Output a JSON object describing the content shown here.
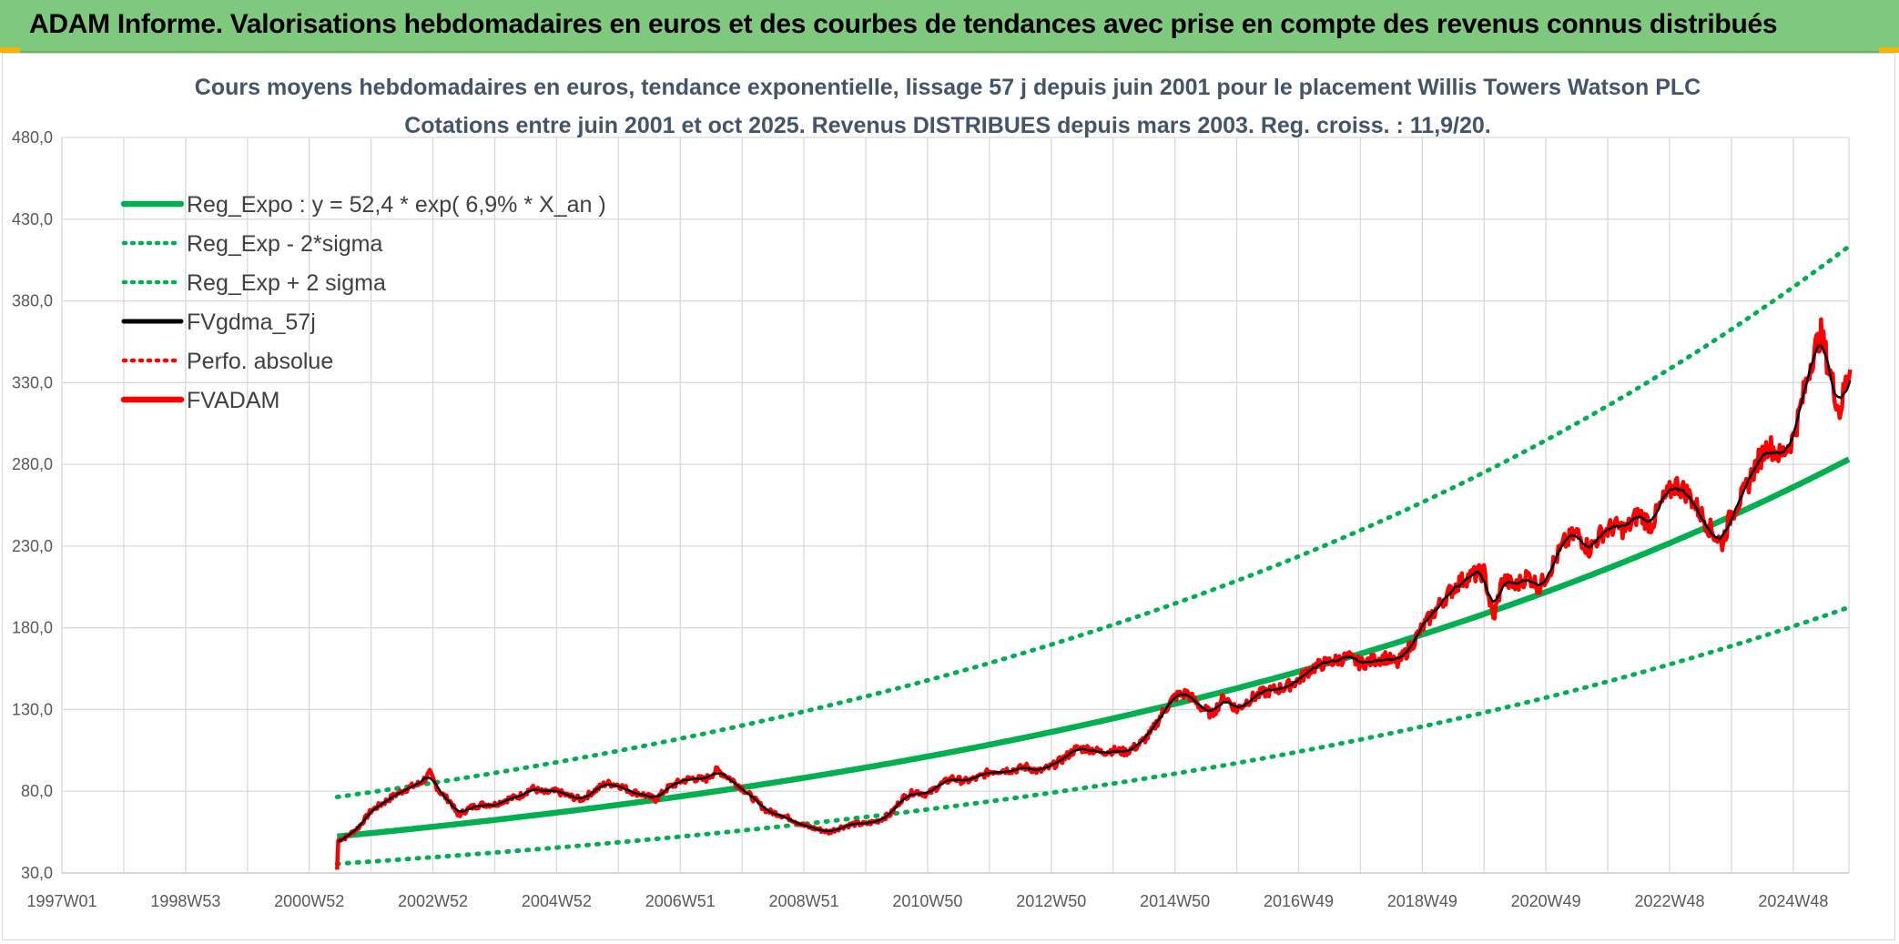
{
  "banner": {
    "title": "ADAM Informe. Valorisations hebdomadaires en euros et des courbes de tendances avec prise en compte des revenus connus distribués"
  },
  "colors": {
    "banner": "#7fc97f",
    "regression": "#00b050",
    "smoothed": "#000000",
    "price": "#ff0000"
  },
  "chart_data": {
    "type": "line",
    "title": "Cours moyens hebdomadaires en euros, tendance exponentielle, lissage 57 j depuis juin 2001 pour le placement Willis Towers Watson PLC",
    "subtitle": "Cotations entre juin 2001 et oct 2025. Revenus DISTRIBUES depuis mars 2003. Reg. croiss. : 11,9/20.",
    "xlabel": "",
    "ylabel": "",
    "x_range": [
      1997.0,
      2025.9
    ],
    "ylim": [
      30,
      480
    ],
    "y_ticks": [
      "30,0",
      "80,0",
      "130,0",
      "180,0",
      "230,0",
      "280,0",
      "330,0",
      "380,0",
      "430,0",
      "480,0"
    ],
    "x_ticks": [
      {
        "label": "1997W01",
        "year": 1997.0
      },
      {
        "label": "1998W53",
        "year": 1999.0
      },
      {
        "label": "2000W52",
        "year": 2001.0
      },
      {
        "label": "2002W52",
        "year": 2003.0
      },
      {
        "label": "2004W52",
        "year": 2005.0
      },
      {
        "label": "2006W51",
        "year": 2007.0
      },
      {
        "label": "2008W51",
        "year": 2009.0
      },
      {
        "label": "2010W50",
        "year": 2011.0
      },
      {
        "label": "2012W50",
        "year": 2013.0
      },
      {
        "label": "2014W50",
        "year": 2015.0
      },
      {
        "label": "2016W49",
        "year": 2017.0
      },
      {
        "label": "2018W49",
        "year": 2019.0
      },
      {
        "label": "2020W49",
        "year": 2021.0
      },
      {
        "label": "2022W48",
        "year": 2023.0
      },
      {
        "label": "2024W48",
        "year": 2025.0
      }
    ],
    "grid": true,
    "legend_position": "top-left",
    "regression": {
      "a": 52.4,
      "rate": 0.069,
      "start_year": 2001.45,
      "end_year": 2025.9,
      "lower_factor": 0.68,
      "upper_factor": 1.46
    },
    "series": [
      {
        "name": "Reg_Expo : y = 52,4 * exp( 6,9% *  X_an )",
        "style": "solid-thick",
        "color": "#00b050"
      },
      {
        "name": "Reg_Exp - 2*sigma",
        "style": "dotted",
        "color": "#00b050"
      },
      {
        "name": "Reg_Exp + 2 sigma",
        "style": "dotted",
        "color": "#00b050"
      },
      {
        "name": "FVgdma_57j",
        "style": "solid",
        "color": "#000000"
      },
      {
        "name": "Perfo. absolue",
        "style": "dotted",
        "color": "#ff0000"
      },
      {
        "name": "FVADAM",
        "style": "solid-thick",
        "color": "#ff0000",
        "points": [
          [
            2001.45,
            32
          ],
          [
            2001.47,
            50
          ],
          [
            2001.6,
            52
          ],
          [
            2001.8,
            58
          ],
          [
            2002.0,
            68
          ],
          [
            2002.2,
            73
          ],
          [
            2002.4,
            78
          ],
          [
            2002.6,
            82
          ],
          [
            2002.8,
            85
          ],
          [
            2002.95,
            91
          ],
          [
            2003.1,
            80
          ],
          [
            2003.3,
            73
          ],
          [
            2003.4,
            65
          ],
          [
            2003.6,
            70
          ],
          [
            2003.8,
            72
          ],
          [
            2004.0,
            72
          ],
          [
            2004.2,
            75
          ],
          [
            2004.4,
            77
          ],
          [
            2004.6,
            82
          ],
          [
            2004.8,
            79
          ],
          [
            2005.0,
            80
          ],
          [
            2005.2,
            77
          ],
          [
            2005.4,
            75
          ],
          [
            2005.6,
            80
          ],
          [
            2005.8,
            85
          ],
          [
            2006.0,
            84
          ],
          [
            2006.2,
            80
          ],
          [
            2006.4,
            78
          ],
          [
            2006.6,
            75
          ],
          [
            2006.8,
            82
          ],
          [
            2007.0,
            86
          ],
          [
            2007.2,
            88
          ],
          [
            2007.4,
            87
          ],
          [
            2007.6,
            93
          ],
          [
            2007.8,
            88
          ],
          [
            2008.0,
            82
          ],
          [
            2008.2,
            75
          ],
          [
            2008.4,
            68
          ],
          [
            2008.6,
            66
          ],
          [
            2008.8,
            63
          ],
          [
            2009.0,
            59
          ],
          [
            2009.2,
            57
          ],
          [
            2009.4,
            55
          ],
          [
            2009.6,
            58
          ],
          [
            2009.8,
            60
          ],
          [
            2010.0,
            60
          ],
          [
            2010.2,
            62
          ],
          [
            2010.4,
            66
          ],
          [
            2010.6,
            76
          ],
          [
            2010.8,
            80
          ],
          [
            2011.0,
            78
          ],
          [
            2011.2,
            84
          ],
          [
            2011.4,
            88
          ],
          [
            2011.6,
            86
          ],
          [
            2011.8,
            88
          ],
          [
            2012.0,
            92
          ],
          [
            2012.2,
            93
          ],
          [
            2012.4,
            93
          ],
          [
            2012.6,
            95
          ],
          [
            2012.8,
            92
          ],
          [
            2013.0,
            95
          ],
          [
            2013.2,
            100
          ],
          [
            2013.4,
            106
          ],
          [
            2013.6,
            106
          ],
          [
            2013.8,
            104
          ],
          [
            2014.0,
            105
          ],
          [
            2014.2,
            104
          ],
          [
            2014.4,
            108
          ],
          [
            2014.6,
            115
          ],
          [
            2014.8,
            128
          ],
          [
            2015.0,
            138
          ],
          [
            2015.2,
            140
          ],
          [
            2015.4,
            132
          ],
          [
            2015.6,
            127
          ],
          [
            2015.8,
            138
          ],
          [
            2016.0,
            130
          ],
          [
            2016.2,
            136
          ],
          [
            2016.4,
            140
          ],
          [
            2016.6,
            142
          ],
          [
            2016.8,
            144
          ],
          [
            2017.0,
            148
          ],
          [
            2017.2,
            155
          ],
          [
            2017.4,
            158
          ],
          [
            2017.6,
            160
          ],
          [
            2017.8,
            162
          ],
          [
            2018.0,
            158
          ],
          [
            2018.2,
            160
          ],
          [
            2018.4,
            162
          ],
          [
            2018.6,
            158
          ],
          [
            2018.8,
            168
          ],
          [
            2019.0,
            180
          ],
          [
            2019.2,
            190
          ],
          [
            2019.4,
            200
          ],
          [
            2019.6,
            208
          ],
          [
            2019.8,
            212
          ],
          [
            2020.0,
            214
          ],
          [
            2020.15,
            185
          ],
          [
            2020.3,
            210
          ],
          [
            2020.5,
            205
          ],
          [
            2020.7,
            212
          ],
          [
            2020.9,
            205
          ],
          [
            2021.1,
            218
          ],
          [
            2021.3,
            232
          ],
          [
            2021.5,
            238
          ],
          [
            2021.7,
            228
          ],
          [
            2021.9,
            238
          ],
          [
            2022.1,
            242
          ],
          [
            2022.3,
            240
          ],
          [
            2022.5,
            250
          ],
          [
            2022.7,
            243
          ],
          [
            2022.9,
            258
          ],
          [
            2023.1,
            268
          ],
          [
            2023.3,
            262
          ],
          [
            2023.5,
            250
          ],
          [
            2023.7,
            238
          ],
          [
            2023.85,
            232
          ],
          [
            2024.0,
            250
          ],
          [
            2024.2,
            262
          ],
          [
            2024.4,
            280
          ],
          [
            2024.6,
            292
          ],
          [
            2024.8,
            285
          ],
          [
            2025.0,
            296
          ],
          [
            2025.15,
            320
          ],
          [
            2025.3,
            345
          ],
          [
            2025.45,
            360
          ],
          [
            2025.6,
            335
          ],
          [
            2025.75,
            312
          ],
          [
            2025.85,
            330
          ],
          [
            2025.92,
            338
          ]
        ]
      }
    ]
  }
}
